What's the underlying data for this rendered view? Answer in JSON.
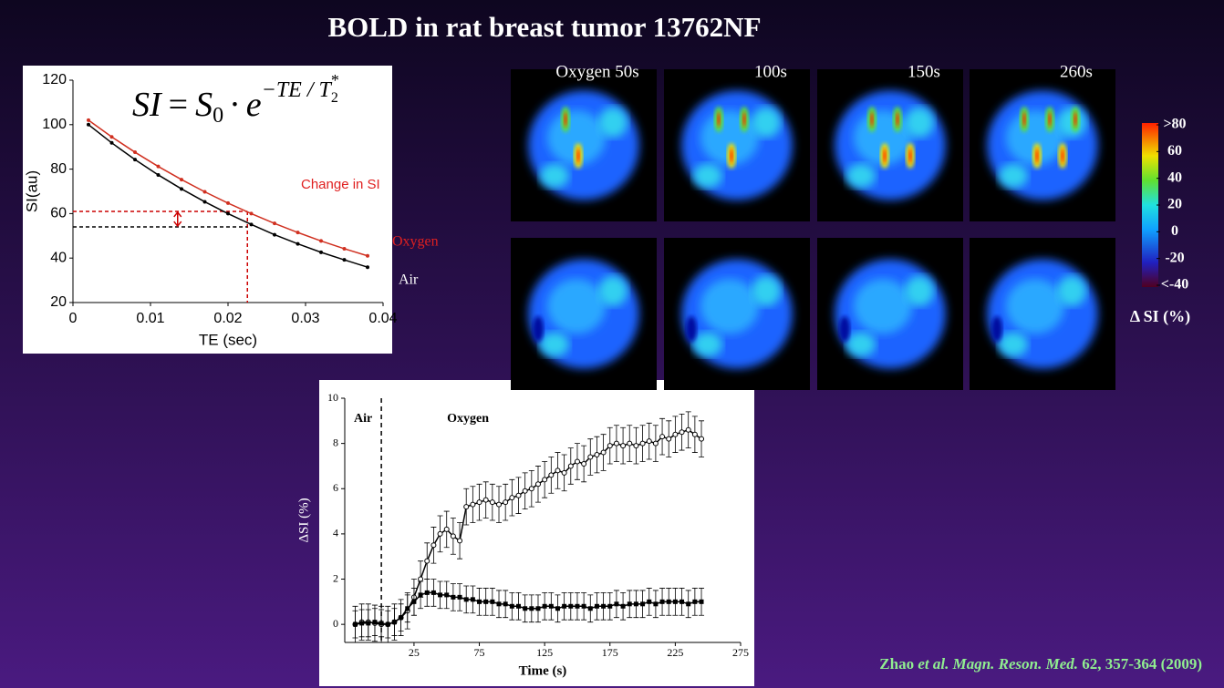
{
  "title": "BOLD in rat breast tumor 13762NF",
  "formula": {
    "lhs": "SI",
    "eq": "=",
    "s": "S",
    "s_sub": "0",
    "dot": "·",
    "e": "e",
    "exp": "−TE / T",
    "exp_sub": "2",
    "exp_sup": "*"
  },
  "panel_labels": [
    "Oxygen 50s",
    "100s",
    "150s",
    "260s"
  ],
  "colorbar": {
    "lim": [
      -40,
      80
    ],
    "ticks": [
      {
        "value": 80,
        "label": ">80"
      },
      60,
      40,
      20,
      0,
      -20,
      {
        "value": -40,
        "label": "<-40"
      }
    ],
    "label": "Δ SI (%)"
  },
  "citation": {
    "author": "Zhao",
    "etal": "et al.",
    "journal": "Magn. Reson. Med.",
    "ref": "62, 357-364 (2009)"
  },
  "chart_data": [
    {
      "type": "line",
      "xlabel": "TE (sec)",
      "ylabel": "SI(au)",
      "xlim": [
        0,
        0.04
      ],
      "xticks": [
        0,
        0.01,
        0.02,
        0.03,
        0.04
      ],
      "ylim": [
        20,
        120
      ],
      "yticks": [
        20,
        40,
        60,
        80,
        100,
        120
      ],
      "x": [
        0.002,
        0.005,
        0.008,
        0.011,
        0.014,
        0.017,
        0.02,
        0.023,
        0.026,
        0.029,
        0.032,
        0.035,
        0.038
      ],
      "series": [
        {
          "name": "Oxygen",
          "color": "#d03020",
          "values": [
            102,
            94.5,
            87.6,
            81.2,
            75.3,
            69.8,
            64.7,
            60.0,
            55.6,
            51.5,
            47.7,
            44.2,
            41.0
          ]
        },
        {
          "name": "Air",
          "color": "#000000",
          "values": [
            100,
            91.8,
            84.3,
            77.4,
            71.1,
            65.3,
            60.0,
            55.1,
            50.5,
            46.4,
            42.6,
            39.2,
            35.9
          ]
        }
      ],
      "guides": {
        "x": 0.0225,
        "y": [
          61,
          54
        ]
      },
      "annotations": [
        "Change in SI"
      ]
    },
    {
      "type": "line",
      "xlabel": "Time (s)",
      "ylabel": "ΔSI (%)",
      "xlim": [
        -28,
        275
      ],
      "xticks": [
        25,
        75,
        125,
        175,
        225,
        275
      ],
      "ylim": [
        -0.8,
        10
      ],
      "yticks": [
        0,
        2,
        4,
        6,
        8,
        10
      ],
      "phase_line": 0,
      "phases": [
        "Air",
        "Oxygen"
      ],
      "x": [
        -20,
        -15,
        -10,
        -5,
        0,
        5,
        10,
        15,
        20,
        25,
        30,
        35,
        40,
        45,
        50,
        55,
        60,
        65,
        70,
        75,
        80,
        85,
        90,
        95,
        100,
        105,
        110,
        115,
        120,
        125,
        130,
        135,
        140,
        145,
        150,
        155,
        160,
        165,
        170,
        175,
        180,
        185,
        190,
        195,
        200,
        205,
        210,
        215,
        220,
        225,
        230,
        235,
        240,
        245
      ],
      "series": [
        {
          "color": "#000000",
          "marker": "circle",
          "error": 0.8,
          "values": [
            0,
            0.1,
            0.1,
            0.05,
            0,
            0,
            0.1,
            0.3,
            0.6,
            1.2,
            2.0,
            2.8,
            3.5,
            4.0,
            4.2,
            3.9,
            3.7,
            5.2,
            5.3,
            5.4,
            5.5,
            5.4,
            5.3,
            5.4,
            5.6,
            5.7,
            5.9,
            6.0,
            6.2,
            6.4,
            6.6,
            6.8,
            6.7,
            7.0,
            7.2,
            7.1,
            7.4,
            7.5,
            7.6,
            7.9,
            8.0,
            7.9,
            8.0,
            7.9,
            8.0,
            8.1,
            8.0,
            8.3,
            8.2,
            8.4,
            8.5,
            8.6,
            8.4,
            8.2
          ]
        },
        {
          "color": "#000000",
          "marker": "square",
          "error": 0.6,
          "values": [
            0,
            0.05,
            0.05,
            0.1,
            0.05,
            0,
            0.1,
            0.3,
            0.7,
            1.0,
            1.3,
            1.4,
            1.4,
            1.3,
            1.3,
            1.2,
            1.2,
            1.1,
            1.1,
            1.0,
            1.0,
            1.0,
            0.9,
            0.9,
            0.8,
            0.8,
            0.7,
            0.7,
            0.7,
            0.8,
            0.8,
            0.7,
            0.8,
            0.8,
            0.8,
            0.8,
            0.7,
            0.8,
            0.8,
            0.8,
            0.9,
            0.8,
            0.9,
            0.9,
            0.9,
            1.0,
            0.9,
            1.0,
            1.0,
            1.0,
            1.0,
            0.9,
            1.0,
            1.0
          ]
        }
      ]
    }
  ]
}
